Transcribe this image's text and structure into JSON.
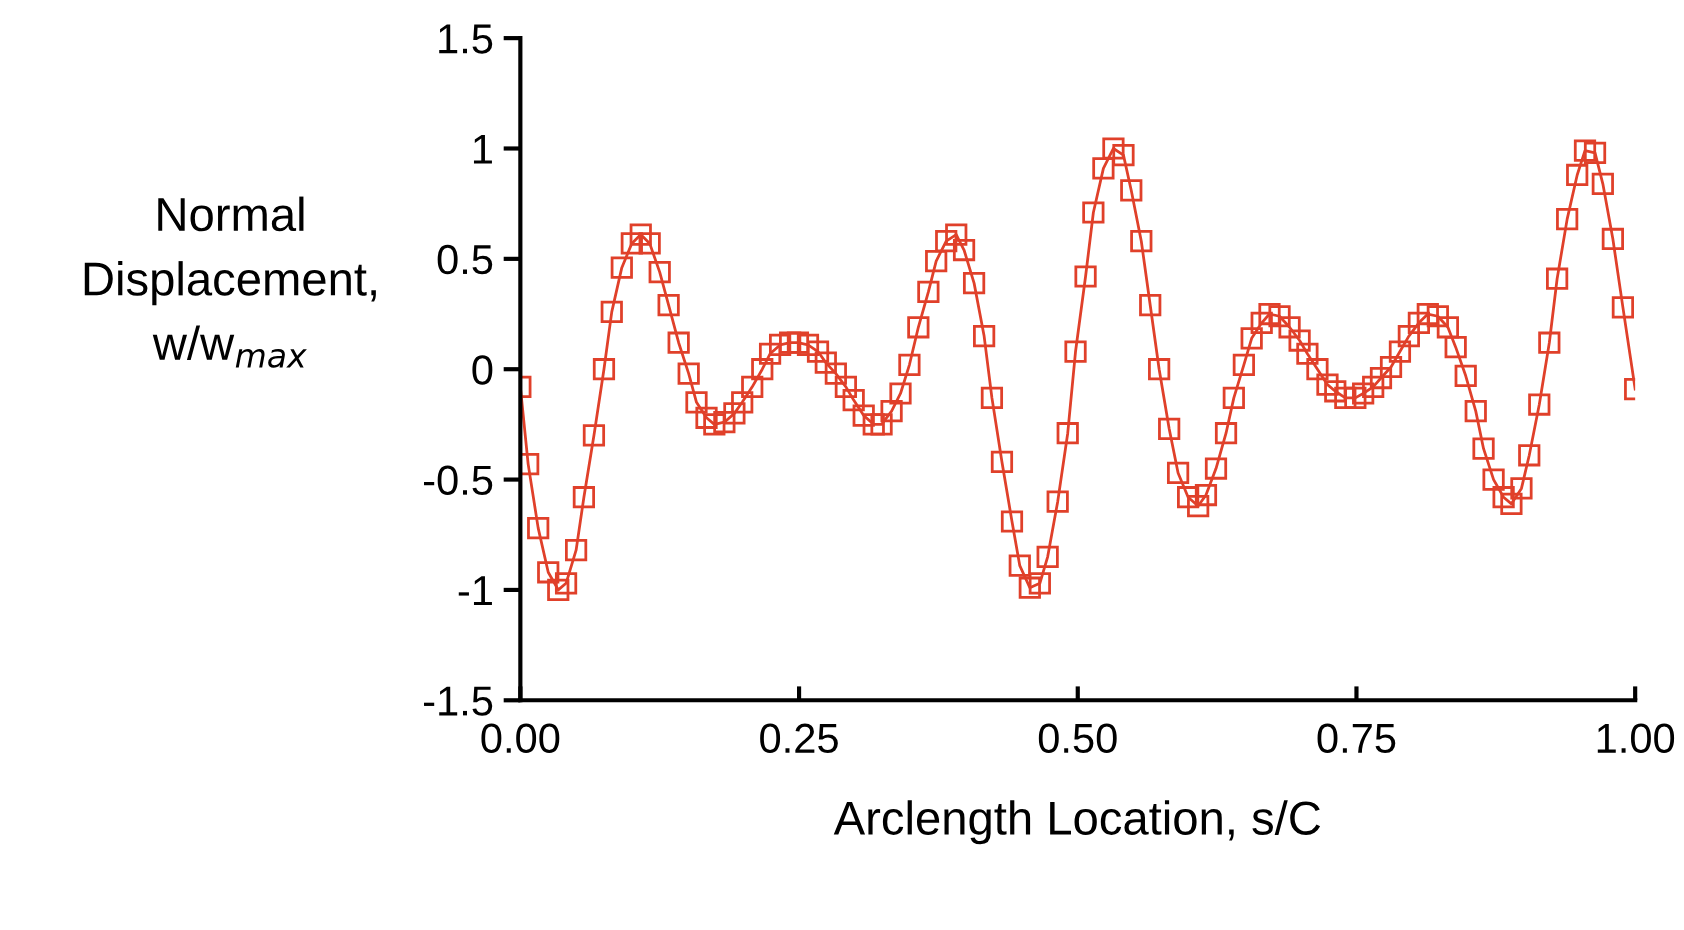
{
  "chart_data": {
    "type": "line",
    "xlabel": "Arclength Location, s/C",
    "ylabel": "Normal\nDisplacement,\nw/w$_{max}$",
    "xlim": [
      0,
      1
    ],
    "ylim": [
      -1.5,
      1.5
    ],
    "xticks": [
      {
        "value": 0,
        "label": "0.00"
      },
      {
        "value": 0.25,
        "label": "0.25"
      },
      {
        "value": 0.5,
        "label": "0.50"
      },
      {
        "value": 0.75,
        "label": "0.75"
      },
      {
        "value": 1,
        "label": "1.00"
      }
    ],
    "yticks": [
      -1.5,
      -1,
      -0.5,
      0,
      0.5,
      1,
      1.5
    ],
    "grid": false,
    "legend": false,
    "marker": "square",
    "line_style": "solid",
    "series": [
      {
        "color": "#e0402a",
        "x": [
          0.0,
          0.007,
          0.016,
          0.025,
          0.034,
          0.041,
          0.05,
          0.057,
          0.066,
          0.075,
          0.082,
          0.091,
          0.1,
          0.108,
          0.116,
          0.125,
          0.133,
          0.142,
          0.151,
          0.158,
          0.167,
          0.174,
          0.183,
          0.192,
          0.199,
          0.208,
          0.217,
          0.224,
          0.233,
          0.242,
          0.249,
          0.258,
          0.267,
          0.274,
          0.283,
          0.292,
          0.299,
          0.308,
          0.317,
          0.324,
          0.333,
          0.341,
          0.349,
          0.357,
          0.366,
          0.373,
          0.382,
          0.391,
          0.398,
          0.407,
          0.416,
          0.423,
          0.432,
          0.441,
          0.448,
          0.457,
          0.466,
          0.473,
          0.482,
          0.491,
          0.498,
          0.507,
          0.514,
          0.523,
          0.532,
          0.541,
          0.548,
          0.557,
          0.565,
          0.573,
          0.582,
          0.59,
          0.599,
          0.608,
          0.615,
          0.624,
          0.633,
          0.64,
          0.649,
          0.656,
          0.665,
          0.672,
          0.681,
          0.69,
          0.699,
          0.706,
          0.715,
          0.724,
          0.731,
          0.74,
          0.749,
          0.756,
          0.765,
          0.772,
          0.781,
          0.789,
          0.797,
          0.806,
          0.814,
          0.823,
          0.832,
          0.839,
          0.848,
          0.857,
          0.864,
          0.873,
          0.882,
          0.889,
          0.898,
          0.905,
          0.914,
          0.923,
          0.93,
          0.939,
          0.948,
          0.955,
          0.964,
          0.971,
          0.98,
          0.989,
          1.0
        ],
        "values": [
          -0.08,
          -0.43,
          -0.72,
          -0.92,
          -1.0,
          -0.97,
          -0.82,
          -0.58,
          -0.3,
          0.0,
          0.26,
          0.46,
          0.57,
          0.61,
          0.57,
          0.44,
          0.29,
          0.12,
          -0.02,
          -0.15,
          -0.22,
          -0.25,
          -0.24,
          -0.2,
          -0.15,
          -0.08,
          0.0,
          0.07,
          0.11,
          0.12,
          0.12,
          0.11,
          0.08,
          0.03,
          -0.02,
          -0.08,
          -0.14,
          -0.21,
          -0.25,
          -0.25,
          -0.19,
          -0.11,
          0.02,
          0.19,
          0.35,
          0.49,
          0.58,
          0.61,
          0.54,
          0.39,
          0.15,
          -0.13,
          -0.42,
          -0.69,
          -0.89,
          -0.99,
          -0.97,
          -0.85,
          -0.6,
          -0.29,
          0.08,
          0.42,
          0.71,
          0.91,
          1.0,
          0.97,
          0.81,
          0.58,
          0.29,
          0.0,
          -0.27,
          -0.47,
          -0.58,
          -0.62,
          -0.57,
          -0.45,
          -0.29,
          -0.13,
          0.02,
          0.14,
          0.21,
          0.25,
          0.24,
          0.19,
          0.13,
          0.07,
          0.0,
          -0.07,
          -0.1,
          -0.13,
          -0.13,
          -0.11,
          -0.08,
          -0.04,
          0.01,
          0.08,
          0.15,
          0.21,
          0.25,
          0.24,
          0.19,
          0.1,
          -0.03,
          -0.19,
          -0.36,
          -0.5,
          -0.58,
          -0.61,
          -0.54,
          -0.39,
          -0.16,
          0.12,
          0.41,
          0.68,
          0.88,
          0.99,
          0.98,
          0.84,
          0.59,
          0.28,
          -0.09
        ]
      }
    ]
  }
}
